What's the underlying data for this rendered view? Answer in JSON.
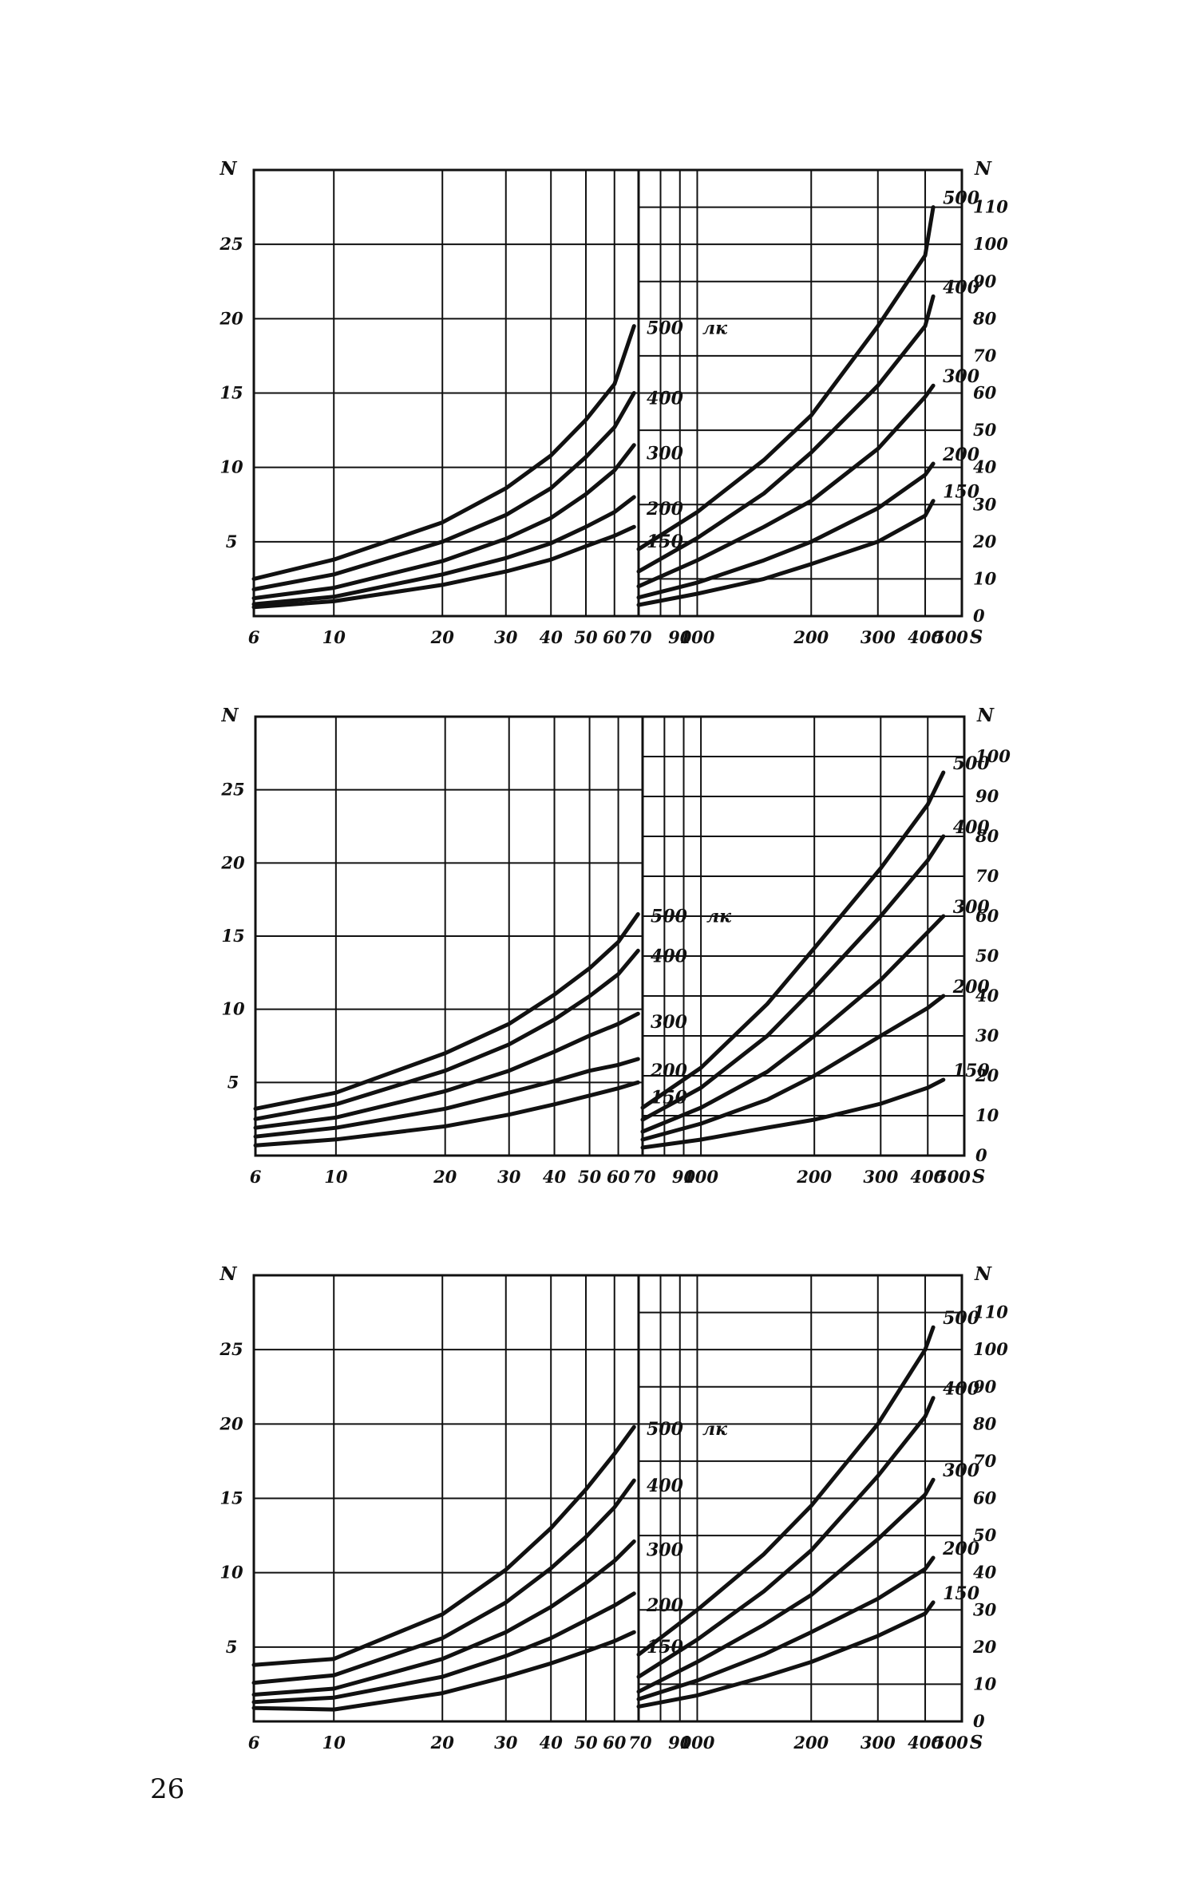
{
  "page_number": "26",
  "chart_data": [
    {
      "type": "line",
      "xlabel": "S",
      "ylabel_left": "N",
      "ylabel_right": "N",
      "x_scale": "log",
      "split_x": 70,
      "left_xticks": [
        "6",
        "10",
        "20",
        "30",
        "40",
        "50",
        "60",
        "70"
      ],
      "right_xticks": [
        "70",
        "90",
        "100",
        "200",
        "300",
        "400",
        "500"
      ],
      "yticks_left": [
        "5",
        "10",
        "15",
        "20",
        "25"
      ],
      "yticks_right": [
        "0",
        "10",
        "20",
        "30",
        "40",
        "50",
        "60",
        "70",
        "80",
        "90",
        "100",
        "110"
      ],
      "unit_label": "лк",
      "series": [
        {
          "name": "500",
          "left": {
            "x": [
              6,
              10,
              20,
              30,
              40,
              50,
              60,
              68
            ],
            "y": [
              2.5,
              3.8,
              6.3,
              8.6,
              10.8,
              13.2,
              15.6,
              19.5
            ]
          },
          "right": {
            "x": [
              70,
              100,
              150,
              200,
              300,
              400,
              420
            ],
            "y": [
              18,
              28,
              42,
              54,
              78,
              97,
              110
            ]
          }
        },
        {
          "name": "400",
          "left": {
            "x": [
              6,
              10,
              20,
              30,
              40,
              50,
              60,
              68
            ],
            "y": [
              1.8,
              2.8,
              5.0,
              6.8,
              8.6,
              10.7,
              12.7,
              15
            ]
          },
          "right": {
            "x": [
              70,
              100,
              150,
              200,
              300,
              400,
              420
            ],
            "y": [
              12,
              21,
              33,
              44,
              62,
              78,
              86
            ]
          }
        },
        {
          "name": "300",
          "left": {
            "x": [
              6,
              10,
              20,
              30,
              40,
              50,
              60,
              68
            ],
            "y": [
              1.2,
              1.9,
              3.7,
              5.2,
              6.6,
              8.2,
              9.8,
              11.5
            ]
          },
          "right": {
            "x": [
              70,
              100,
              150,
              200,
              300,
              400,
              420
            ],
            "y": [
              8,
              15,
              24,
              31,
              45,
              59,
              62
            ]
          }
        },
        {
          "name": "200",
          "left": {
            "x": [
              6,
              10,
              20,
              30,
              40,
              50,
              60,
              68
            ],
            "y": [
              0.8,
              1.3,
              2.8,
              3.9,
              4.9,
              6.0,
              7.0,
              8
            ]
          },
          "right": {
            "x": [
              70,
              100,
              150,
              200,
              300,
              400,
              420
            ],
            "y": [
              5,
              9,
              15,
              20,
              29,
              38,
              41
            ]
          }
        },
        {
          "name": "150",
          "left": {
            "x": [
              6,
              10,
              20,
              30,
              40,
              50,
              60,
              68
            ],
            "y": [
              0.6,
              1.0,
              2.1,
              3.0,
              3.8,
              4.7,
              5.4,
              6
            ]
          },
          "right": {
            "x": [
              70,
              100,
              150,
              200,
              300,
              400,
              420
            ],
            "y": [
              3,
              6,
              10,
              14,
              20,
              27,
              31
            ]
          }
        }
      ]
    },
    {
      "type": "line",
      "xlabel": "S",
      "ylabel_left": "N",
      "ylabel_right": "N",
      "x_scale": "log",
      "split_x": 70,
      "left_xticks": [
        "6",
        "10",
        "20",
        "30",
        "40",
        "50",
        "60",
        "70"
      ],
      "right_xticks": [
        "70",
        "90",
        "100",
        "200",
        "300",
        "400",
        "500"
      ],
      "yticks_left": [
        "5",
        "10",
        "15",
        "20",
        "25"
      ],
      "yticks_right": [
        "0",
        "10",
        "20",
        "30",
        "40",
        "50",
        "60",
        "70",
        "80",
        "90",
        "100"
      ],
      "unit_label": "лк",
      "series": [
        {
          "name": "500",
          "left": {
            "x": [
              6,
              10,
              20,
              30,
              40,
              50,
              60,
              68
            ],
            "y": [
              3.2,
              4.3,
              7.0,
              9.0,
              11.0,
              12.8,
              14.6,
              16.5
            ]
          },
          "right": {
            "x": [
              70,
              100,
              150,
              200,
              300,
              400,
              440
            ],
            "y": [
              12,
              22,
              38,
              52,
              72,
              88,
              96
            ]
          }
        },
        {
          "name": "400",
          "left": {
            "x": [
              6,
              10,
              20,
              30,
              40,
              50,
              60,
              68
            ],
            "y": [
              2.5,
              3.5,
              5.8,
              7.6,
              9.3,
              10.9,
              12.4,
              14
            ]
          },
          "right": {
            "x": [
              70,
              100,
              150,
              200,
              300,
              400,
              440
            ],
            "y": [
              9,
              17,
              30,
              42,
              60,
              74,
              80
            ]
          }
        },
        {
          "name": "300",
          "left": {
            "x": [
              6,
              10,
              20,
              30,
              40,
              50,
              60,
              68
            ],
            "y": [
              1.9,
              2.6,
              4.4,
              5.8,
              7.1,
              8.2,
              9.0,
              9.7
            ]
          },
          "right": {
            "x": [
              70,
              100,
              150,
              200,
              300,
              400,
              440
            ],
            "y": [
              6,
              12,
              21,
              30,
              44,
              56,
              60
            ]
          }
        },
        {
          "name": "200",
          "left": {
            "x": [
              6,
              10,
              20,
              30,
              40,
              50,
              60,
              68
            ],
            "y": [
              1.3,
              1.9,
              3.2,
              4.3,
              5.1,
              5.8,
              6.2,
              6.6
            ]
          },
          "right": {
            "x": [
              70,
              100,
              150,
              200,
              300,
              400,
              440
            ],
            "y": [
              4,
              8,
              14,
              20,
              30,
              37,
              40
            ]
          }
        },
        {
          "name": "150",
          "left": {
            "x": [
              6,
              10,
              20,
              30,
              40,
              50,
              60,
              68
            ],
            "y": [
              0.7,
              1.1,
              2.0,
              2.8,
              3.5,
              4.1,
              4.6,
              5.0
            ]
          },
          "right": {
            "x": [
              70,
              100,
              150,
              200,
              300,
              400,
              440
            ],
            "y": [
              2,
              4,
              7,
              9,
              13,
              17,
              19
            ]
          }
        }
      ]
    },
    {
      "type": "line",
      "xlabel": "S",
      "ylabel_left": "N",
      "ylabel_right": "N",
      "x_scale": "log",
      "split_x": 70,
      "left_xticks": [
        "6",
        "10",
        "20",
        "30",
        "40",
        "50",
        "60",
        "70"
      ],
      "right_xticks": [
        "70",
        "90",
        "100",
        "200",
        "300",
        "400",
        "500"
      ],
      "yticks_left": [
        "5",
        "10",
        "15",
        "20",
        "25"
      ],
      "yticks_right": [
        "0",
        "10",
        "20",
        "30",
        "40",
        "50",
        "60",
        "70",
        "80",
        "90",
        "100",
        "110"
      ],
      "unit_label": "лк",
      "series": [
        {
          "name": "500",
          "left": {
            "x": [
              6,
              10,
              20,
              30,
              40,
              50,
              60,
              68
            ],
            "y": [
              3.8,
              4.2,
              7.2,
              10.2,
              13.0,
              15.6,
              18.0,
              19.8
            ]
          },
          "right": {
            "x": [
              70,
              100,
              150,
              200,
              300,
              400,
              420
            ],
            "y": [
              18,
              30,
              45,
              58,
              80,
              100,
              106
            ]
          }
        },
        {
          "name": "400",
          "left": {
            "x": [
              6,
              10,
              20,
              30,
              40,
              50,
              60,
              68
            ],
            "y": [
              2.6,
              3.1,
              5.6,
              8.0,
              10.3,
              12.4,
              14.4,
              16.2
            ]
          },
          "right": {
            "x": [
              70,
              100,
              150,
              200,
              300,
              400,
              420
            ],
            "y": [
              12,
              22,
              35,
              46,
              66,
              82,
              87
            ]
          }
        },
        {
          "name": "300",
          "left": {
            "x": [
              6,
              10,
              20,
              30,
              40,
              50,
              60,
              68
            ],
            "y": [
              1.8,
              2.2,
              4.2,
              6.0,
              7.7,
              9.3,
              10.8,
              12.1
            ]
          },
          "right": {
            "x": [
              70,
              100,
              150,
              200,
              300,
              400,
              420
            ],
            "y": [
              8,
              16,
              26,
              34,
              49,
              61,
              65
            ]
          }
        },
        {
          "name": "200",
          "left": {
            "x": [
              6,
              10,
              20,
              30,
              40,
              50,
              60,
              68
            ],
            "y": [
              1.3,
              1.6,
              3.0,
              4.4,
              5.6,
              6.8,
              7.8,
              8.6
            ]
          },
          "right": {
            "x": [
              70,
              100,
              150,
              200,
              300,
              400,
              420
            ],
            "y": [
              6,
              11,
              18,
              24,
              33,
              41,
              44
            ]
          }
        },
        {
          "name": "150",
          "left": {
            "x": [
              6,
              10,
              20,
              30,
              40,
              50,
              60,
              68
            ],
            "y": [
              0.9,
              0.8,
              1.9,
              3.0,
              3.9,
              4.7,
              5.4,
              6.0
            ]
          },
          "right": {
            "x": [
              70,
              100,
              150,
              200,
              300,
              400,
              420
            ],
            "y": [
              4,
              7,
              12,
              16,
              23,
              29,
              32
            ]
          }
        }
      ]
    }
  ]
}
